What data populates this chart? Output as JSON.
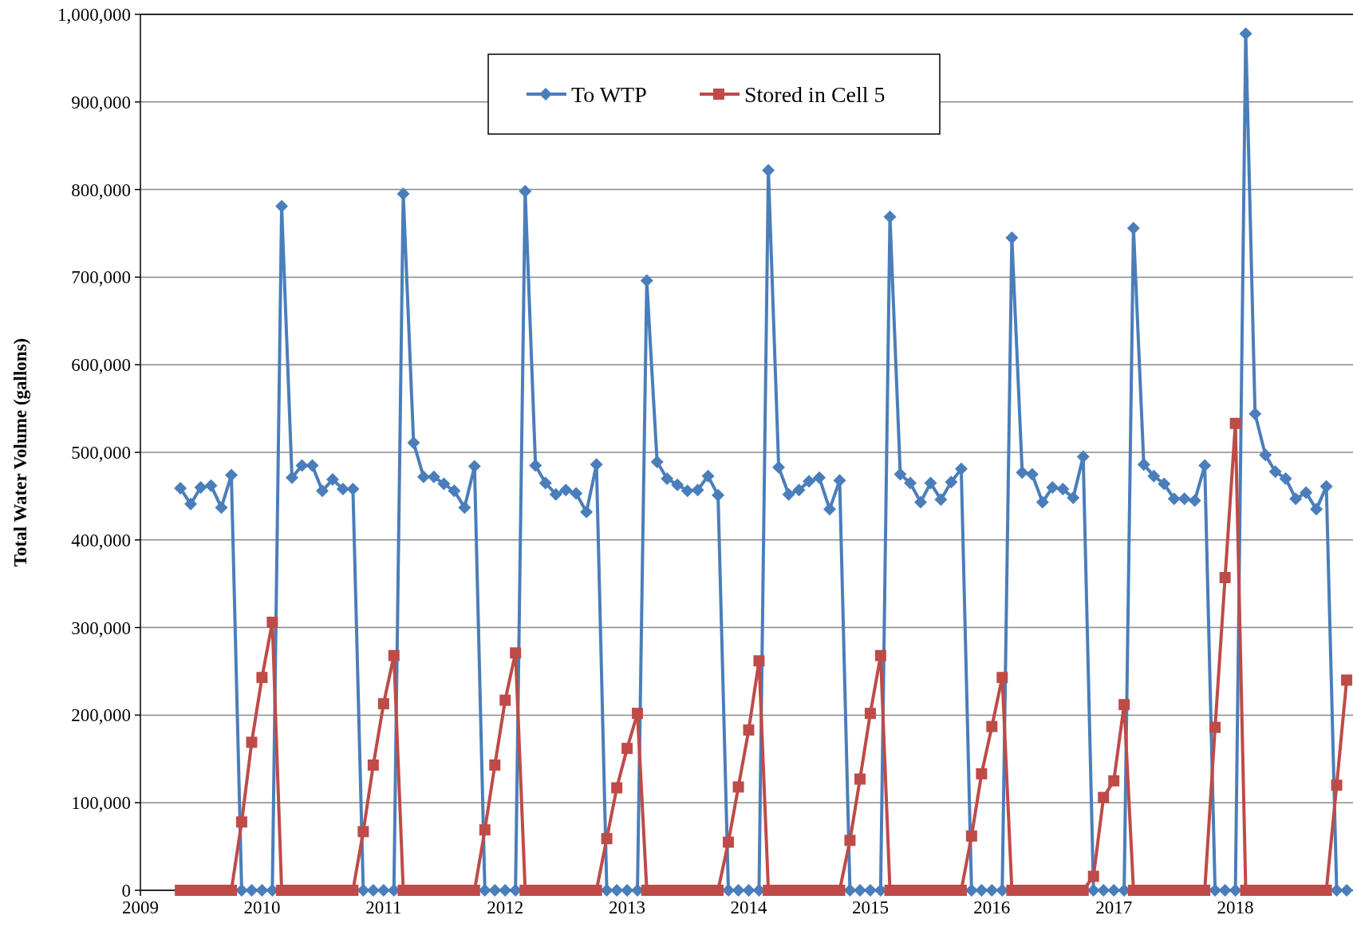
{
  "chart_data": {
    "type": "line",
    "ylabel": "Total Water Volume (gallons)",
    "x": [
      "2009-05",
      "2009-06",
      "2009-07",
      "2009-08",
      "2009-09",
      "2009-10",
      "2009-11",
      "2009-12",
      "2010-01",
      "2010-02",
      "2010-03",
      "2010-04",
      "2010-05",
      "2010-06",
      "2010-07",
      "2010-08",
      "2010-09",
      "2010-10",
      "2010-11",
      "2010-12",
      "2011-01",
      "2011-02",
      "2011-03",
      "2011-04",
      "2011-05",
      "2011-06",
      "2011-07",
      "2011-08",
      "2011-09",
      "2011-10",
      "2011-11",
      "2011-12",
      "2012-01",
      "2012-02",
      "2012-03",
      "2012-04",
      "2012-05",
      "2012-06",
      "2012-07",
      "2012-08",
      "2012-09",
      "2012-10",
      "2012-11",
      "2012-12",
      "2013-01",
      "2013-02",
      "2013-03",
      "2013-04",
      "2013-05",
      "2013-06",
      "2013-07",
      "2013-08",
      "2013-09",
      "2013-10",
      "2013-11",
      "2013-12",
      "2014-01",
      "2014-02",
      "2014-03",
      "2014-04",
      "2014-05",
      "2014-06",
      "2014-07",
      "2014-08",
      "2014-09",
      "2014-10",
      "2014-11",
      "2014-12",
      "2015-01",
      "2015-02",
      "2015-03",
      "2015-04",
      "2015-05",
      "2015-06",
      "2015-07",
      "2015-08",
      "2015-09",
      "2015-10",
      "2015-11",
      "2015-12",
      "2016-01",
      "2016-02",
      "2016-03",
      "2016-04",
      "2016-05",
      "2016-06",
      "2016-07",
      "2016-08",
      "2016-09",
      "2016-10",
      "2016-11",
      "2016-12",
      "2017-01",
      "2017-02",
      "2017-03",
      "2017-04",
      "2017-05",
      "2017-06",
      "2017-07",
      "2017-08",
      "2017-09",
      "2017-10",
      "2017-11",
      "2017-12",
      "2018-01",
      "2018-02",
      "2018-03",
      "2018-04",
      "2018-05",
      "2018-06",
      "2018-07",
      "2018-08",
      "2018-09",
      "2018-10",
      "2018-11",
      "2018-12"
    ],
    "series": [
      {
        "name": "To WTP",
        "color": "#4a7ebb",
        "marker": "diamond",
        "values": [
          459000,
          441000,
          460000,
          462000,
          437000,
          474000,
          0,
          0,
          0,
          0,
          781000,
          471000,
          485000,
          485000,
          456000,
          469000,
          458000,
          458000,
          0,
          0,
          0,
          0,
          795000,
          511000,
          472000,
          472000,
          464000,
          456000,
          437000,
          484000,
          0,
          0,
          0,
          0,
          798000,
          485000,
          465000,
          452000,
          457000,
          453000,
          432000,
          486000,
          0,
          0,
          0,
          0,
          696000,
          489000,
          470000,
          463000,
          456000,
          457000,
          473000,
          451000,
          0,
          0,
          0,
          0,
          822000,
          483000,
          452000,
          457000,
          467000,
          471000,
          435000,
          468000,
          0,
          0,
          0,
          0,
          769000,
          475000,
          465000,
          443000,
          465000,
          446000,
          466000,
          481000,
          0,
          0,
          0,
          0,
          745000,
          477000,
          475000,
          443000,
          460000,
          458000,
          448000,
          495000,
          0,
          0,
          0,
          0,
          756000,
          486000,
          473000,
          464000,
          447000,
          447000,
          445000,
          485000,
          0,
          0,
          0,
          978000,
          544000,
          497000,
          478000,
          470000,
          447000,
          454000,
          435000,
          461000,
          0,
          0
        ]
      },
      {
        "name": "Stored in Cell 5",
        "color": "#be4b48",
        "marker": "square",
        "values": [
          0,
          0,
          0,
          0,
          0,
          0,
          78000,
          169000,
          243000,
          306000,
          0,
          0,
          0,
          0,
          0,
          0,
          0,
          0,
          67000,
          143000,
          213000,
          268000,
          0,
          0,
          0,
          0,
          0,
          0,
          0,
          0,
          69000,
          143000,
          217000,
          271000,
          0,
          0,
          0,
          0,
          0,
          0,
          0,
          0,
          59000,
          117000,
          162000,
          202000,
          0,
          0,
          0,
          0,
          0,
          0,
          0,
          0,
          55000,
          118000,
          183000,
          262000,
          0,
          0,
          0,
          0,
          0,
          0,
          0,
          0,
          57000,
          127000,
          202000,
          268000,
          0,
          0,
          0,
          0,
          0,
          0,
          0,
          0,
          62000,
          133000,
          187000,
          243000,
          0,
          0,
          0,
          0,
          0,
          0,
          0,
          0,
          16000,
          106000,
          125000,
          212000,
          0,
          0,
          0,
          0,
          0,
          0,
          0,
          0,
          186000,
          357000,
          533000,
          0,
          0,
          0,
          0,
          0,
          0,
          0,
          0,
          0,
          120000,
          240000
        ]
      }
    ],
    "xlim": [
      "2009-01-01",
      "2018-12-20"
    ],
    "xticks": [
      {
        "value": "2009-01-01",
        "label": "2009"
      },
      {
        "value": "2010-01-01",
        "label": "2010"
      },
      {
        "value": "2011-01-01",
        "label": "2011"
      },
      {
        "value": "2012-01-01",
        "label": "2012"
      },
      {
        "value": "2013-01-01",
        "label": "2013"
      },
      {
        "value": "2014-01-01",
        "label": "2014"
      },
      {
        "value": "2015-01-01",
        "label": "2015"
      },
      {
        "value": "2016-01-01",
        "label": "2016"
      },
      {
        "value": "2017-01-01",
        "label": "2017"
      },
      {
        "value": "2018-01-01",
        "label": "2018"
      }
    ],
    "ylim": [
      0,
      1000000
    ],
    "yticks": [
      0,
      {
        "value": 100000,
        "label": "100,000"
      },
      {
        "value": 200000,
        "label": "200,000"
      },
      {
        "value": 300000,
        "label": "300,000"
      },
      {
        "value": 400000,
        "label": "400,000"
      },
      {
        "value": 500000,
        "label": "500,000"
      },
      {
        "value": 600000,
        "label": "600,000"
      },
      {
        "value": 700000,
        "label": "700,000"
      },
      {
        "value": 800000,
        "label": "800,000"
      },
      {
        "value": 900000,
        "label": "900,000"
      },
      {
        "value": 1000000,
        "label": "1,000,000"
      }
    ],
    "grid": "y",
    "legend": "top",
    "line_style": "solid"
  }
}
